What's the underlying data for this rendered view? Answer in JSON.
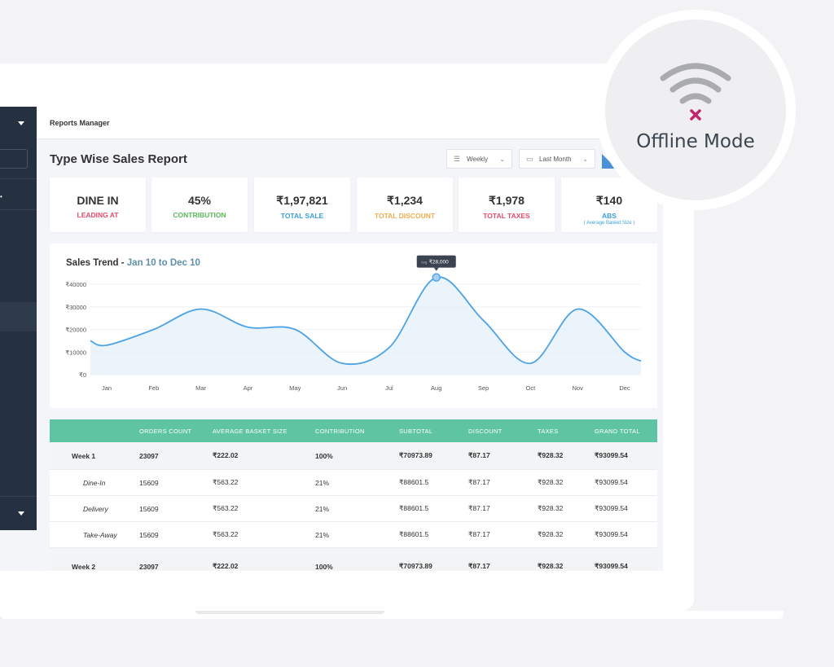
{
  "topbar": {
    "title": "Reports Manager"
  },
  "page": {
    "title": "Type Wise Sales Report"
  },
  "filters": [
    {
      "label": "Weekly",
      "icon": "filter-icon"
    },
    {
      "label": "Last Month",
      "icon": "calendar-icon"
    }
  ],
  "summary_cards": [
    {
      "value": "DINE IN",
      "label": "LEADING AT",
      "color": "#e34c6b"
    },
    {
      "value": "45%",
      "label": "CONTRIBUTION",
      "color": "#5cb85c"
    },
    {
      "value": "₹1,97,821",
      "label": "TOTAL SALE",
      "color": "#3aa0d8"
    },
    {
      "value": "₹1,234",
      "label": "TOTAL DISCOUNT",
      "color": "#f0ad4e"
    },
    {
      "value": "₹1,978",
      "label": "TOTAL TAXES",
      "color": "#e34c6b"
    },
    {
      "value": "₹140",
      "label": "ABS",
      "sub": "( Average Basket Size )",
      "color": "#3aa0d8"
    }
  ],
  "chart": {
    "title": "Sales Trend - ",
    "range": "Jan 10 to Dec 10",
    "tooltip_prefix": "Avg",
    "tooltip_value": "₹28,000"
  },
  "chart_data": {
    "type": "area",
    "categories": [
      "Jan",
      "Feb",
      "Mar",
      "Apr",
      "May",
      "Jun",
      "Jul",
      "Aug",
      "Sep",
      "Oct",
      "Nov",
      "Dec"
    ],
    "y_ticks": [
      "₹0",
      "₹10000",
      "₹20000",
      "₹30000",
      "₹40000"
    ],
    "ylim": [
      0,
      40000
    ],
    "values": [
      13000,
      20000,
      29000,
      21000,
      20000,
      5000,
      12000,
      43000,
      24000,
      5000,
      29000,
      10000
    ],
    "grid": true,
    "color": "#4da3e8"
  },
  "table": {
    "headers": [
      "",
      "ORDERS COUNT",
      "AVERAGE BASKET SIZE",
      "CONTRIBUTION",
      "SUBTOTAL",
      "DISCOUNT",
      "TAXES",
      "GRAND TOTAL"
    ],
    "rows": [
      {
        "type": "week",
        "cells": [
          "Week 1",
          "23097",
          "₹222.02",
          "100%",
          "₹70973.89",
          "₹87.17",
          "₹928.32",
          "₹93099.54"
        ]
      },
      {
        "type": "sub",
        "cells": [
          "Dine-In",
          "15609",
          "₹563.22",
          "21%",
          "₹88601.5",
          "₹87.17",
          "₹928.32",
          "₹93099.54"
        ]
      },
      {
        "type": "sub",
        "cells": [
          "Delivery",
          "15609",
          "₹563.22",
          "21%",
          "₹88601.5",
          "₹87.17",
          "₹928.32",
          "₹93099.54"
        ]
      },
      {
        "type": "sub",
        "cells": [
          "Take-Away",
          "15609",
          "₹563.22",
          "21%",
          "₹88601.5",
          "₹87.17",
          "₹928.32",
          "₹93099.54"
        ]
      },
      {
        "type": "week",
        "cells": [
          "Week 2",
          "23097",
          "₹222.02",
          "100%",
          "₹70973.89",
          "₹87.17",
          "₹928.32",
          "₹93099.54"
        ]
      }
    ]
  },
  "offline": {
    "label": "Offline Mode",
    "icon": "wifi-off-icon"
  }
}
